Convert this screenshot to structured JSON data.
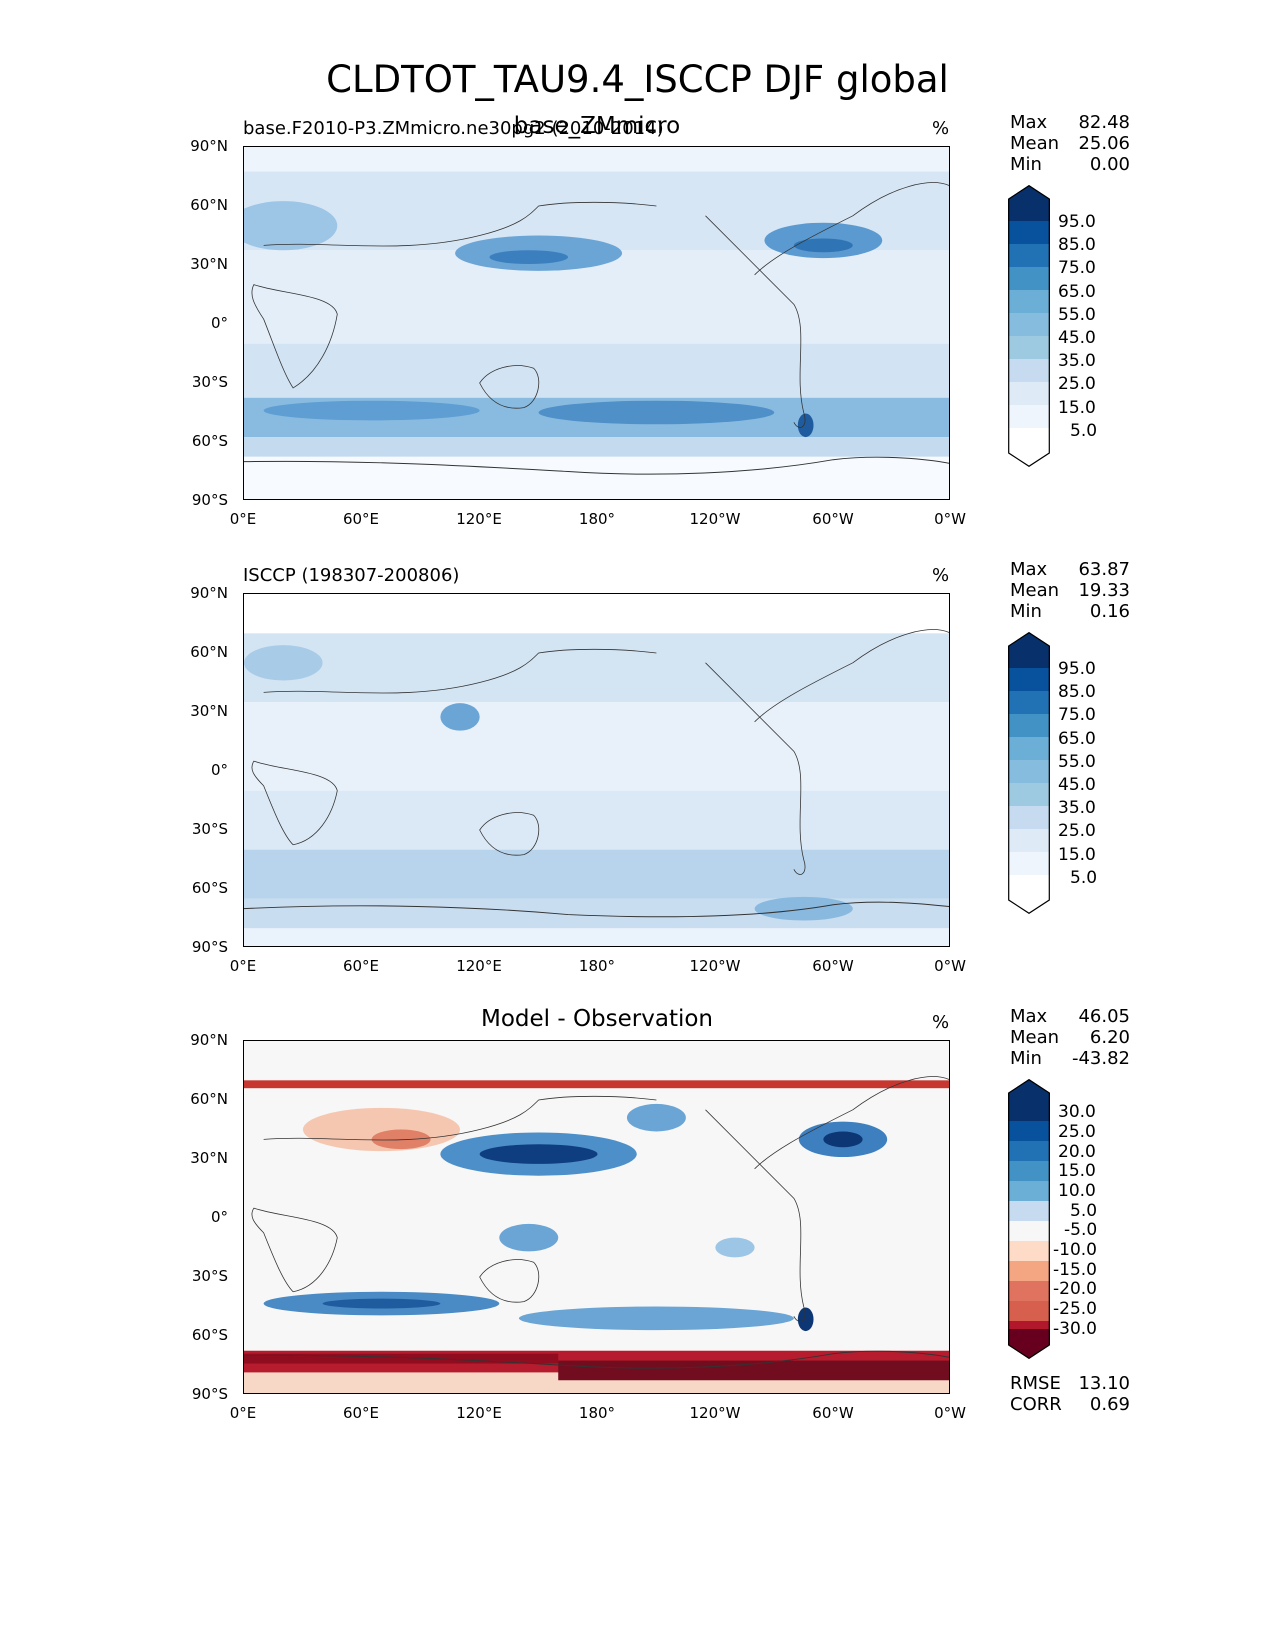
{
  "figure_title": "CLDTOT_TAU9.4_ISCCP DJF global",
  "panels": [
    {
      "id": "test",
      "left_title": "base.F2010-P3.ZMmicro.ne30pg2 (2010-2014)",
      "center_title": "base_ZMmicro",
      "units": "%",
      "stats": {
        "max_label": "Max",
        "max": "82.48",
        "mean_label": "Mean",
        "mean": "25.06",
        "min_label": "Min",
        "min": "0.00"
      },
      "colorbar": [
        "95.0",
        "85.0",
        "75.0",
        "65.0",
        "55.0",
        "45.0",
        "35.0",
        "25.0",
        "15.0",
        "5.0"
      ]
    },
    {
      "id": "ref",
      "left_title": "ISCCP (198307-200806)",
      "center_title": "",
      "units": "%",
      "stats": {
        "max_label": "Max",
        "max": "63.87",
        "mean_label": "Mean",
        "mean": "19.33",
        "min_label": "Min",
        "min": "0.16"
      },
      "colorbar": [
        "95.0",
        "85.0",
        "75.0",
        "65.0",
        "55.0",
        "45.0",
        "35.0",
        "25.0",
        "15.0",
        "5.0"
      ]
    },
    {
      "id": "diff",
      "left_title": "",
      "center_title": "Model - Observation",
      "units": "%",
      "stats": {
        "max_label": "Max",
        "max": "46.05",
        "mean_label": "Mean",
        "mean": "6.20",
        "min_label": "Min",
        "min": "-43.82"
      },
      "colorbar": [
        "30.0",
        "25.0",
        "20.0",
        "15.0",
        "10.0",
        "5.0",
        "-5.0",
        "-10.0",
        "-15.0",
        "-20.0",
        "-25.0",
        "-30.0"
      ],
      "metrics": {
        "rmse_label": "RMSE",
        "rmse": "13.10",
        "corr_label": "CORR",
        "corr": "0.69"
      }
    }
  ],
  "axes": {
    "lat_ticks": [
      "90°N",
      "60°N",
      "30°N",
      "0°",
      "30°S",
      "60°S",
      "90°S"
    ],
    "lon_ticks": [
      "0°E",
      "60°E",
      "120°E",
      "180°",
      "120°W",
      "60°W",
      "0°W"
    ]
  },
  "colors": {
    "seq_colorbar": [
      "#08306b",
      "#08519c",
      "#2171b5",
      "#4292c6",
      "#6baed6",
      "#9ecae1",
      "#c6dbef",
      "#deebf7",
      "#f7fbff"
    ],
    "div_colorbar": [
      "#08306b",
      "#08519c",
      "#2171b5",
      "#4292c6",
      "#6baed6",
      "#c6dbef",
      "#f7f7f7",
      "#fddbc7",
      "#f4a582",
      "#d6604d",
      "#b2182b",
      "#8f0d1f",
      "#67001f"
    ]
  }
}
